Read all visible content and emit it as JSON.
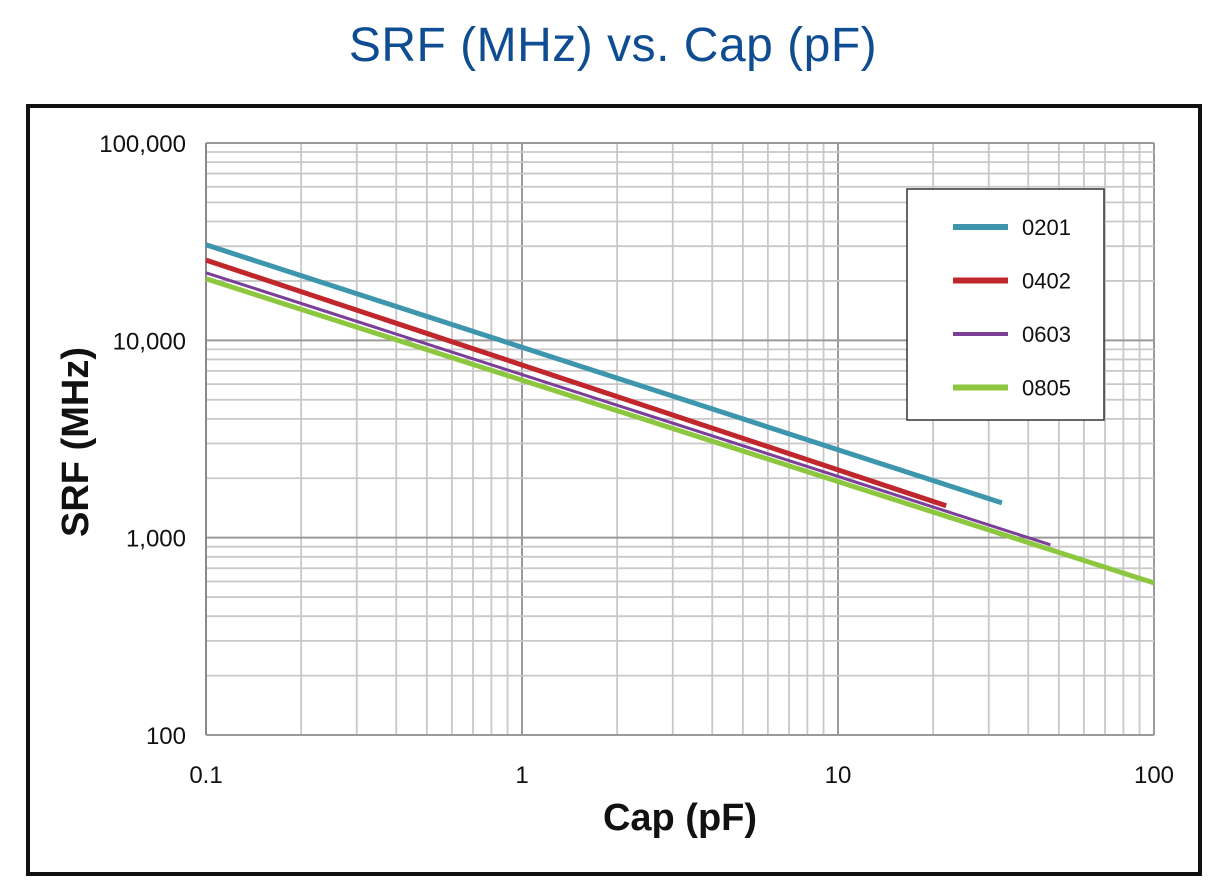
{
  "chart_data": {
    "type": "line",
    "title": "SRF (MHz) vs. Cap (pF)",
    "xlabel": "Cap (pF)",
    "ylabel": "SRF (MHz)",
    "xscale": "log",
    "yscale": "log",
    "xlim": [
      0.1,
      100
    ],
    "ylim": [
      100,
      100000
    ],
    "xticks": [
      {
        "value": 0.1,
        "label": "0.1"
      },
      {
        "value": 1,
        "label": "1"
      },
      {
        "value": 10,
        "label": "10"
      },
      {
        "value": 100,
        "label": "100"
      }
    ],
    "yticks": [
      {
        "value": 100,
        "label": "100"
      },
      {
        "value": 1000,
        "label": "1,000"
      },
      {
        "value": 10000,
        "label": "10,000"
      },
      {
        "value": 100000,
        "label": "100,000"
      }
    ],
    "grid": true,
    "legend_position": "top-right",
    "series": [
      {
        "name": "0201",
        "color": "#3d96ad",
        "width": 5,
        "x": [
          0.1,
          33
        ],
        "y": [
          30500,
          1500
        ]
      },
      {
        "name": "0402",
        "color": "#c0272d",
        "width": 5,
        "x": [
          0.1,
          22
        ],
        "y": [
          25500,
          1450
        ]
      },
      {
        "name": "0603",
        "color": "#7b3f98",
        "width": 3,
        "x": [
          0.1,
          47
        ],
        "y": [
          22000,
          920
        ]
      },
      {
        "name": "0805",
        "color": "#8dc63f",
        "width": 5,
        "x": [
          0.1,
          100
        ],
        "y": [
          20500,
          590
        ]
      }
    ]
  }
}
